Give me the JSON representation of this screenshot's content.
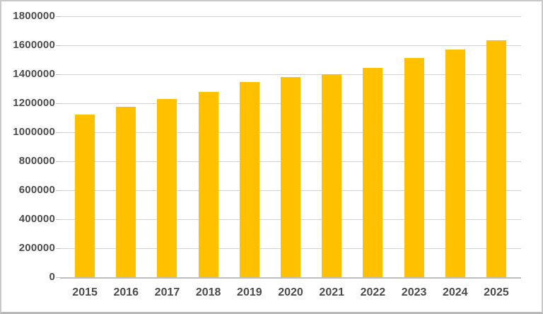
{
  "chart_data": {
    "type": "bar",
    "title": "",
    "xlabel": "",
    "ylabel": "",
    "categories": [
      "2015",
      "2016",
      "2017",
      "2018",
      "2019",
      "2020",
      "2021",
      "2022",
      "2023",
      "2024",
      "2025"
    ],
    "values": [
      1120000,
      1175000,
      1230000,
      1280000,
      1345000,
      1380000,
      1400000,
      1445000,
      1510000,
      1570000,
      1635000
    ],
    "ylim": [
      0,
      1800000
    ],
    "y_ticks": [
      0,
      200000,
      400000,
      600000,
      800000,
      1000000,
      1200000,
      1400000,
      1600000,
      1800000
    ],
    "y_tick_labels": [
      "0",
      "200000",
      "400000",
      "600000",
      "800000",
      "1000000",
      "1200000",
      "1400000",
      "1600000",
      "1800000"
    ],
    "grid": true,
    "legend": "none"
  },
  "colors": {
    "bar": "#FFC000",
    "gridline": "#D2D2D2",
    "axis_line": "#BDBDBD",
    "tick_label": "#4B4B4B",
    "background": "#FFFFFF",
    "frame_border": "#C9C9C9"
  }
}
